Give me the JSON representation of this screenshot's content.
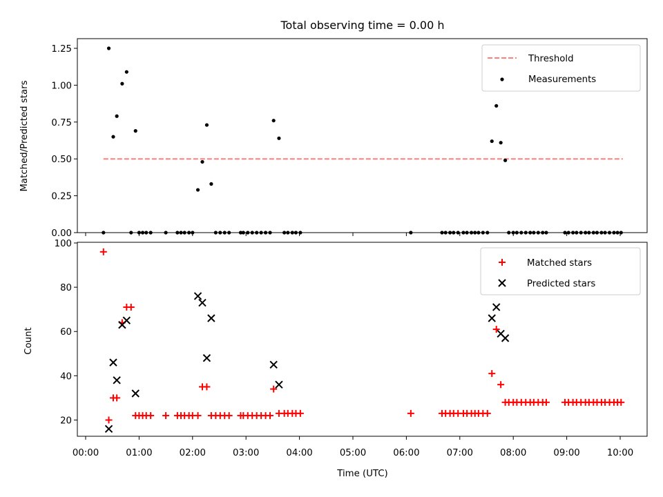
{
  "chart_data": [
    {
      "type": "scatter",
      "title": "Total observing time = 0.00 h",
      "xlabel": "",
      "ylabel": "Matched/Predicted stars",
      "xlim": [
        "00:00",
        "10:30"
      ],
      "ylim": [
        0,
        1.32
      ],
      "y_ticks": [
        "0.00",
        "0.25",
        "0.50",
        "0.75",
        "1.00",
        "1.25"
      ],
      "grid": false,
      "legend_position": "top-right",
      "threshold": {
        "name": "Threshold",
        "value": 0.5,
        "x_range": [
          "00:20",
          "10:03"
        ],
        "color": "#ff7f7f",
        "style": "dashed"
      },
      "series": [
        {
          "name": "Measurements",
          "marker": "dot",
          "color": "#000000",
          "x": [
            "00:20",
            "00:26",
            "00:31",
            "00:35",
            "00:41",
            "00:46",
            "00:51",
            "00:56",
            "01:00",
            "01:04",
            "01:08",
            "01:13",
            "01:30",
            "01:43",
            "01:47",
            "01:51",
            "01:56",
            "02:00",
            "02:06",
            "02:11",
            "02:16",
            "02:21",
            "02:26",
            "02:31",
            "02:36",
            "02:41",
            "02:54",
            "02:57",
            "03:02",
            "03:07",
            "03:12",
            "03:17",
            "03:22",
            "03:27",
            "03:31",
            "03:37",
            "03:43",
            "03:47",
            "03:52",
            "03:56",
            "04:01",
            "06:05",
            "06:40",
            "06:44",
            "06:49",
            "06:53",
            "06:58",
            "07:04",
            "07:08",
            "07:13",
            "07:17",
            "07:21",
            "07:26",
            "07:31",
            "07:36",
            "07:41",
            "07:46",
            "07:51",
            "07:55",
            "08:00",
            "08:04",
            "08:09",
            "08:14",
            "08:19",
            "08:23",
            "08:28",
            "08:33",
            "08:37",
            "08:58",
            "09:02",
            "09:07",
            "09:11",
            "09:16",
            "09:21",
            "09:25",
            "09:30",
            "09:34",
            "09:39",
            "09:43",
            "09:48",
            "09:53",
            "09:57",
            "10:01"
          ],
          "y": [
            0,
            1.25,
            0.65,
            0.79,
            1.01,
            1.09,
            0,
            0.69,
            0,
            0,
            0,
            0,
            0,
            0,
            0,
            0,
            0,
            0,
            0.29,
            0.48,
            0.73,
            0.33,
            0,
            0,
            0,
            0,
            0,
            0,
            0,
            0,
            0,
            0,
            0,
            0,
            0.76,
            0.64,
            0,
            0,
            0,
            0,
            0,
            0,
            0,
            0,
            0,
            0,
            0,
            0,
            0,
            0,
            0,
            0,
            0,
            0,
            0.62,
            0.86,
            0.61,
            0.49,
            0,
            0,
            0,
            0,
            0,
            0,
            0,
            0,
            0,
            0,
            0,
            0,
            0,
            0,
            0,
            0,
            0,
            0,
            0,
            0,
            0,
            0,
            0,
            0,
            0
          ]
        }
      ]
    },
    {
      "type": "scatter",
      "title": "",
      "xlabel": "Time (UTC)",
      "ylabel": "Count",
      "xlim": [
        "00:00",
        "10:30"
      ],
      "ylim": [
        12,
        100
      ],
      "y_ticks": [
        "20",
        "40",
        "60",
        "80",
        "100"
      ],
      "x_ticks": [
        "00:00",
        "01:00",
        "02:00",
        "03:00",
        "04:00",
        "05:00",
        "06:00",
        "07:00",
        "08:00",
        "09:00",
        "10:00"
      ],
      "grid": false,
      "legend_position": "top-right",
      "series": [
        {
          "name": "Matched stars",
          "marker": "plus",
          "color": "#ff0000",
          "x": [
            "00:20",
            "00:26",
            "00:31",
            "00:35",
            "00:41",
            "00:46",
            "00:51",
            "00:56",
            "01:00",
            "01:04",
            "01:08",
            "01:13",
            "01:30",
            "01:43",
            "01:47",
            "01:51",
            "01:56",
            "02:00",
            "02:06",
            "02:11",
            "02:16",
            "02:21",
            "02:26",
            "02:31",
            "02:36",
            "02:41",
            "02:54",
            "02:57",
            "03:02",
            "03:07",
            "03:12",
            "03:17",
            "03:22",
            "03:27",
            "03:31",
            "03:37",
            "03:43",
            "03:47",
            "03:52",
            "03:56",
            "04:01",
            "06:05",
            "06:40",
            "06:44",
            "06:49",
            "06:53",
            "06:58",
            "07:04",
            "07:08",
            "07:13",
            "07:17",
            "07:21",
            "07:26",
            "07:31",
            "07:36",
            "07:41",
            "07:46",
            "07:51",
            "07:55",
            "08:00",
            "08:04",
            "08:09",
            "08:14",
            "08:19",
            "08:23",
            "08:28",
            "08:33",
            "08:37",
            "08:58",
            "09:02",
            "09:07",
            "09:11",
            "09:16",
            "09:21",
            "09:25",
            "09:30",
            "09:34",
            "09:39",
            "09:43",
            "09:48",
            "09:53",
            "09:57",
            "10:01"
          ],
          "y": [
            96,
            20,
            30,
            30,
            64,
            71,
            71,
            22,
            22,
            22,
            22,
            22,
            22,
            22,
            22,
            22,
            22,
            22,
            22,
            35,
            35,
            22,
            22,
            22,
            22,
            22,
            22,
            22,
            22,
            22,
            22,
            22,
            22,
            22,
            34,
            23,
            23,
            23,
            23,
            23,
            23,
            23,
            23,
            23,
            23,
            23,
            23,
            23,
            23,
            23,
            23,
            23,
            23,
            23,
            41,
            61,
            36,
            28,
            28,
            28,
            28,
            28,
            28,
            28,
            28,
            28,
            28,
            28,
            28,
            28,
            28,
            28,
            28,
            28,
            28,
            28,
            28,
            28,
            28,
            28,
            28,
            28,
            28
          ]
        },
        {
          "name": "Predicted stars",
          "marker": "x",
          "color": "#000000",
          "x": [
            "00:26",
            "00:31",
            "00:35",
            "00:41",
            "00:46",
            "00:56",
            "02:06",
            "02:11",
            "02:16",
            "02:21",
            "03:31",
            "03:37",
            "07:36",
            "07:41",
            "07:46",
            "07:51"
          ],
          "y": [
            16,
            46,
            38,
            63,
            65,
            32,
            76,
            73,
            48,
            66,
            45,
            36,
            66,
            71,
            59,
            57
          ]
        }
      ]
    }
  ]
}
